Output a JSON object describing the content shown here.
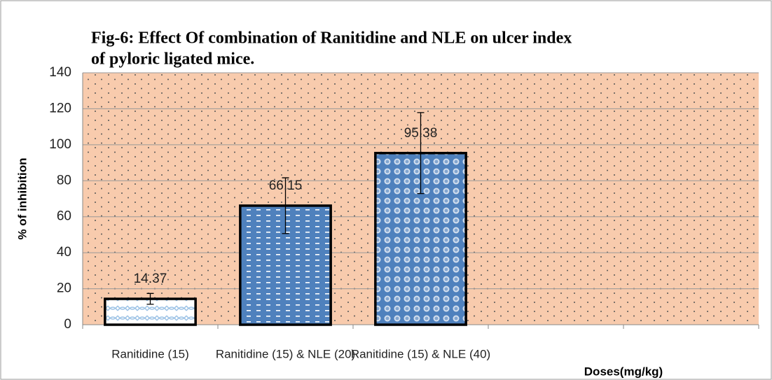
{
  "chart_data": {
    "type": "bar",
    "title": [
      "Fig-6: Effect Of combination of  Ranitidine and NLE on ulcer index",
      "of  pyloric ligated mice."
    ],
    "y_label": "% of inhibition",
    "x_label": "Doses(mg/kg)",
    "categories": [
      "Ranitidine (15)",
      "Ranitidine (15) & NLE (20)",
      "Ranitidine (15) & NLE (40)",
      null,
      null
    ],
    "values": [
      14.37,
      66.15,
      95.38,
      null,
      null
    ],
    "errors": [
      3,
      15.5,
      22.5,
      null,
      null
    ],
    "colors": [
      "#9dc3e6",
      "#4f81bd",
      "#4f81bd",
      null,
      null
    ],
    "ylim": [
      0,
      140
    ],
    "yticks": [
      0,
      20,
      40,
      60,
      80,
      100,
      120,
      140
    ],
    "grid": true,
    "plot_background": "#f8cbad"
  }
}
